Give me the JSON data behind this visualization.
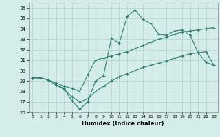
{
  "xlabel": "Humidex (Indice chaleur)",
  "xlim": [
    -0.5,
    23.5
  ],
  "ylim": [
    26,
    36.5
  ],
  "yticks": [
    26,
    27,
    28,
    29,
    30,
    31,
    32,
    33,
    34,
    35,
    36
  ],
  "xticks": [
    0,
    1,
    2,
    3,
    4,
    5,
    6,
    7,
    8,
    9,
    10,
    11,
    12,
    13,
    14,
    15,
    16,
    17,
    18,
    19,
    20,
    21,
    22,
    23
  ],
  "bg_color": "#d4ecea",
  "grid_color": "#b0cfcc",
  "line_color": "#2e7d72",
  "line1_x": [
    0,
    1,
    2,
    3,
    4,
    5,
    6,
    7,
    8,
    9,
    10,
    11,
    12,
    13,
    14,
    15,
    16,
    17,
    18,
    19,
    20,
    21,
    22,
    23
  ],
  "line1_y": [
    29.3,
    29.3,
    29.1,
    28.6,
    28.3,
    27.1,
    26.3,
    27.0,
    29.0,
    29.5,
    33.1,
    32.6,
    35.2,
    35.8,
    34.9,
    34.5,
    33.5,
    33.4,
    33.8,
    33.9,
    33.4,
    31.7,
    30.8,
    30.5
  ],
  "line2_x": [
    0,
    1,
    2,
    3,
    4,
    5,
    6,
    7,
    8,
    9,
    10,
    11,
    12,
    13,
    14,
    15,
    16,
    17,
    18,
    19,
    20,
    21,
    22,
    23
  ],
  "line2_y": [
    29.3,
    29.3,
    29.1,
    28.8,
    28.5,
    28.3,
    28.0,
    29.6,
    31.0,
    31.2,
    31.4,
    31.6,
    31.8,
    32.1,
    32.4,
    32.7,
    33.0,
    33.2,
    33.5,
    33.7,
    33.8,
    33.9,
    34.0,
    34.1
  ],
  "line3_x": [
    0,
    1,
    2,
    3,
    4,
    5,
    6,
    7,
    8,
    9,
    10,
    11,
    12,
    13,
    14,
    15,
    16,
    17,
    18,
    19,
    20,
    21,
    22,
    23
  ],
  "line3_y": [
    29.3,
    29.3,
    29.1,
    28.6,
    28.2,
    27.5,
    27.0,
    27.3,
    28.0,
    28.5,
    29.0,
    29.4,
    29.7,
    30.0,
    30.3,
    30.5,
    30.7,
    30.9,
    31.2,
    31.4,
    31.6,
    31.7,
    31.8,
    30.5
  ]
}
